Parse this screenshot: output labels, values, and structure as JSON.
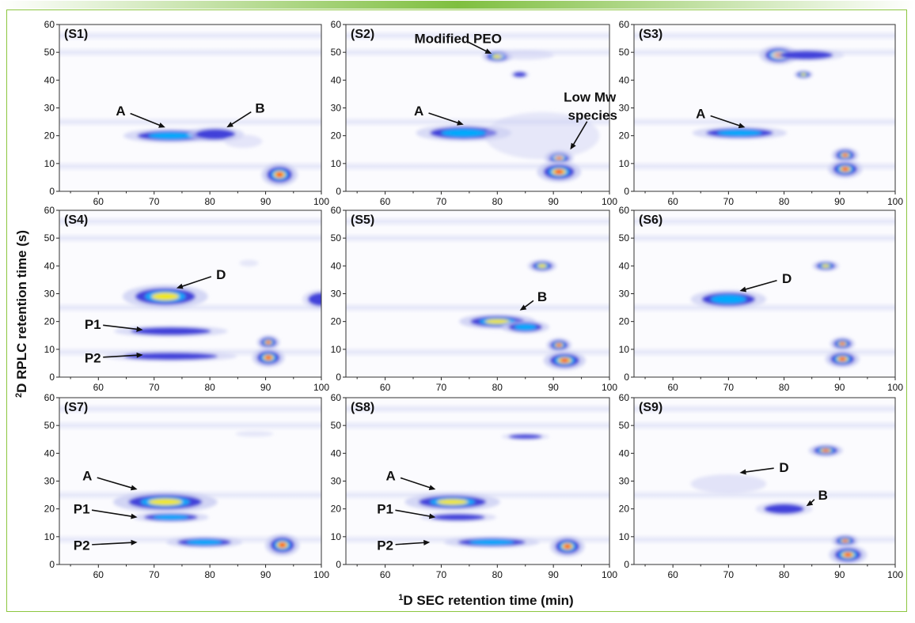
{
  "chart_data": {
    "type": "heatmap",
    "xlabel_sup": "1",
    "xlabel": "D SEC retention time (min)",
    "ylabel_sup": "2",
    "ylabel": "D RPLC retention time (s)",
    "xlim": [
      53,
      100
    ],
    "ylim": [
      0,
      60
    ],
    "xticks": [
      "60",
      "70",
      "80",
      "90",
      "100"
    ],
    "yticks": [
      "0",
      "10",
      "20",
      "30",
      "40",
      "50",
      "60"
    ],
    "colorscale": [
      "#ffffff",
      "#c9ccf2",
      "#3a3ad8",
      "#00b0ff",
      "#ffea00",
      "#ff1a00"
    ],
    "panels": [
      {
        "label": "(S1)",
        "spots": [
          {
            "x": 73,
            "y": 20,
            "sx": 5,
            "sy": 1.5,
            "i": 0.62
          },
          {
            "x": 81,
            "y": 20.5,
            "sx": 3,
            "sy": 1.6,
            "i": 0.5
          },
          {
            "x": 86,
            "y": 18,
            "sx": 2,
            "sy": 1.4,
            "i": 0.2
          },
          {
            "x": 92.5,
            "y": 6,
            "sx": 1.9,
            "sy": 2.4,
            "i": 1.0
          }
        ],
        "annotations": [
          {
            "text": "A",
            "tx": 64,
            "ty": 29,
            "ax": 72,
            "ay": 23
          },
          {
            "text": "B",
            "tx": 89,
            "ty": 30,
            "ax": 83,
            "ay": 23
          }
        ]
      },
      {
        "label": "(S2)",
        "spots": [
          {
            "x": 80,
            "y": 48.5,
            "sx": 1.6,
            "sy": 1.3,
            "i": 0.75
          },
          {
            "x": 85,
            "y": 49,
            "sx": 3,
            "sy": 1,
            "i": 0.25
          },
          {
            "x": 84,
            "y": 42,
            "sx": 1,
            "sy": 0.8,
            "i": 0.3
          },
          {
            "x": 74,
            "y": 21,
            "sx": 5,
            "sy": 1.8,
            "i": 0.55
          },
          {
            "x": 91,
            "y": 12,
            "sx": 1.5,
            "sy": 1.6,
            "i": 0.95
          },
          {
            "x": 91,
            "y": 7,
            "sx": 2.3,
            "sy": 2.2,
            "i": 1.0
          },
          {
            "x": 88,
            "y": 20,
            "sx": 6,
            "sy": 5,
            "i": 0.12
          }
        ],
        "annotations": [
          {
            "text": "A",
            "tx": 66,
            "ty": 29,
            "ax": 74,
            "ay": 24
          },
          {
            "text": "Modified PEO",
            "tx": 73,
            "ty": 55,
            "ax": 79,
            "ay": 49.5
          },
          {
            "text": "Low Mw",
            "tx": 96.5,
            "ty": 34,
            "ax": 0,
            "ay": 0
          },
          {
            "text": "species",
            "tx": 97,
            "ty": 27.5,
            "ax": 93,
            "ay": 15
          }
        ]
      },
      {
        "label": "(S3)",
        "spots": [
          {
            "x": 79,
            "y": 49,
            "sx": 2,
            "sy": 2,
            "i": 1.0
          },
          {
            "x": 84,
            "y": 49,
            "sx": 4,
            "sy": 1.3,
            "i": 0.3
          },
          {
            "x": 83.5,
            "y": 42,
            "sx": 1,
            "sy": 0.9,
            "i": 0.75
          },
          {
            "x": 72,
            "y": 21,
            "sx": 5,
            "sy": 1.4,
            "i": 0.6
          },
          {
            "x": 91,
            "y": 13,
            "sx": 1.4,
            "sy": 1.6,
            "i": 1.0
          },
          {
            "x": 91,
            "y": 8,
            "sx": 1.8,
            "sy": 1.9,
            "i": 1.0
          }
        ],
        "annotations": [
          {
            "text": "A",
            "tx": 65,
            "ty": 28,
            "ax": 73,
            "ay": 23
          }
        ]
      },
      {
        "label": "(S4)",
        "spots": [
          {
            "x": 72,
            "y": 29,
            "sx": 4.5,
            "sy": 2.5,
            "i": 0.7
          },
          {
            "x": 73,
            "y": 16.5,
            "sx": 6,
            "sy": 1.2,
            "i": 0.5
          },
          {
            "x": 73,
            "y": 7.5,
            "sx": 7,
            "sy": 1.1,
            "i": 0.45
          },
          {
            "x": 90.5,
            "y": 12.5,
            "sx": 1.2,
            "sy": 1.5,
            "i": 0.95
          },
          {
            "x": 90.5,
            "y": 7,
            "sx": 1.7,
            "sy": 2,
            "i": 1.0
          },
          {
            "x": 100,
            "y": 28,
            "sx": 2,
            "sy": 2,
            "i": 0.35
          },
          {
            "x": 87,
            "y": 41,
            "sx": 1,
            "sy": 0.7,
            "i": 0.15
          }
        ],
        "annotations": [
          {
            "text": "D",
            "tx": 82,
            "ty": 37,
            "ax": 74,
            "ay": 32
          },
          {
            "text": "P1",
            "tx": 59,
            "ty": 19,
            "ax": 68,
            "ay": 17
          },
          {
            "text": "P2",
            "tx": 59,
            "ty": 7,
            "ax": 68,
            "ay": 8
          }
        ]
      },
      {
        "label": "(S5)",
        "spots": [
          {
            "x": 88,
            "y": 40,
            "sx": 1.5,
            "sy": 1.3,
            "i": 0.8
          },
          {
            "x": 80,
            "y": 20,
            "sx": 4,
            "sy": 1.6,
            "i": 0.75
          },
          {
            "x": 85,
            "y": 18,
            "sx": 2.5,
            "sy": 1.4,
            "i": 0.65
          },
          {
            "x": 91,
            "y": 11.5,
            "sx": 1.3,
            "sy": 1.5,
            "i": 0.95
          },
          {
            "x": 92,
            "y": 6,
            "sx": 2.2,
            "sy": 2,
            "i": 1.0
          }
        ],
        "annotations": [
          {
            "text": "B",
            "tx": 88,
            "ty": 29,
            "ax": 84,
            "ay": 24
          }
        ]
      },
      {
        "label": "(S6)",
        "spots": [
          {
            "x": 87.5,
            "y": 40,
            "sx": 1.4,
            "sy": 1.1,
            "i": 0.75
          },
          {
            "x": 70,
            "y": 28,
            "sx": 4,
            "sy": 2,
            "i": 0.55
          },
          {
            "x": 90.5,
            "y": 12,
            "sx": 1.3,
            "sy": 1.4,
            "i": 0.95
          },
          {
            "x": 90.5,
            "y": 6.5,
            "sx": 1.8,
            "sy": 1.8,
            "i": 1.0
          }
        ],
        "annotations": [
          {
            "text": "D",
            "tx": 80.5,
            "ty": 35.5,
            "ax": 72,
            "ay": 31
          }
        ]
      },
      {
        "label": "(S7)",
        "spots": [
          {
            "x": 72,
            "y": 22.5,
            "sx": 5.5,
            "sy": 2.2,
            "i": 0.8
          },
          {
            "x": 73,
            "y": 17,
            "sx": 4,
            "sy": 1.1,
            "i": 0.55
          },
          {
            "x": 79,
            "y": 8,
            "sx": 4,
            "sy": 1.2,
            "i": 0.55
          },
          {
            "x": 93,
            "y": 7,
            "sx": 1.8,
            "sy": 2.3,
            "i": 1.0
          },
          {
            "x": 88,
            "y": 47,
            "sx": 2,
            "sy": 0.6,
            "i": 0.15
          }
        ],
        "annotations": [
          {
            "text": "A",
            "tx": 58,
            "ty": 32,
            "ax": 67,
            "ay": 27
          },
          {
            "text": "P1",
            "tx": 57,
            "ty": 20,
            "ax": 67,
            "ay": 17
          },
          {
            "text": "P2",
            "tx": 57,
            "ty": 7,
            "ax": 67,
            "ay": 8
          }
        ]
      },
      {
        "label": "(S8)",
        "spots": [
          {
            "x": 72,
            "y": 22.5,
            "sx": 5,
            "sy": 1.9,
            "i": 0.7
          },
          {
            "x": 73,
            "y": 17,
            "sx": 4,
            "sy": 1,
            "i": 0.45
          },
          {
            "x": 79,
            "y": 8,
            "sx": 5,
            "sy": 1.2,
            "i": 0.55
          },
          {
            "x": 92.5,
            "y": 6.5,
            "sx": 1.8,
            "sy": 2.2,
            "i": 1.0
          },
          {
            "x": 85,
            "y": 46,
            "sx": 2.5,
            "sy": 0.7,
            "i": 0.35
          }
        ],
        "annotations": [
          {
            "text": "A",
            "tx": 61,
            "ty": 32,
            "ax": 69,
            "ay": 27
          },
          {
            "text": "P1",
            "tx": 60,
            "ty": 20,
            "ax": 69,
            "ay": 17
          },
          {
            "text": "P2",
            "tx": 60,
            "ty": 7,
            "ax": 68,
            "ay": 8
          }
        ]
      },
      {
        "label": "(S9)",
        "spots": [
          {
            "x": 87.5,
            "y": 41,
            "sx": 1.8,
            "sy": 1.3,
            "i": 0.85
          },
          {
            "x": 70,
            "y": 29,
            "sx": 4,
            "sy": 2,
            "i": 0.25
          },
          {
            "x": 80,
            "y": 20,
            "sx": 3,
            "sy": 1.5,
            "i": 0.35
          },
          {
            "x": 91,
            "y": 8.5,
            "sx": 1.4,
            "sy": 1.3,
            "i": 0.95
          },
          {
            "x": 91.5,
            "y": 3.5,
            "sx": 2,
            "sy": 2,
            "i": 1.0
          }
        ],
        "annotations": [
          {
            "text": "D",
            "tx": 80,
            "ty": 35,
            "ax": 72,
            "ay": 33
          },
          {
            "text": "B",
            "tx": 87,
            "ty": 25,
            "ax": 84,
            "ay": 21
          }
        ]
      }
    ]
  }
}
